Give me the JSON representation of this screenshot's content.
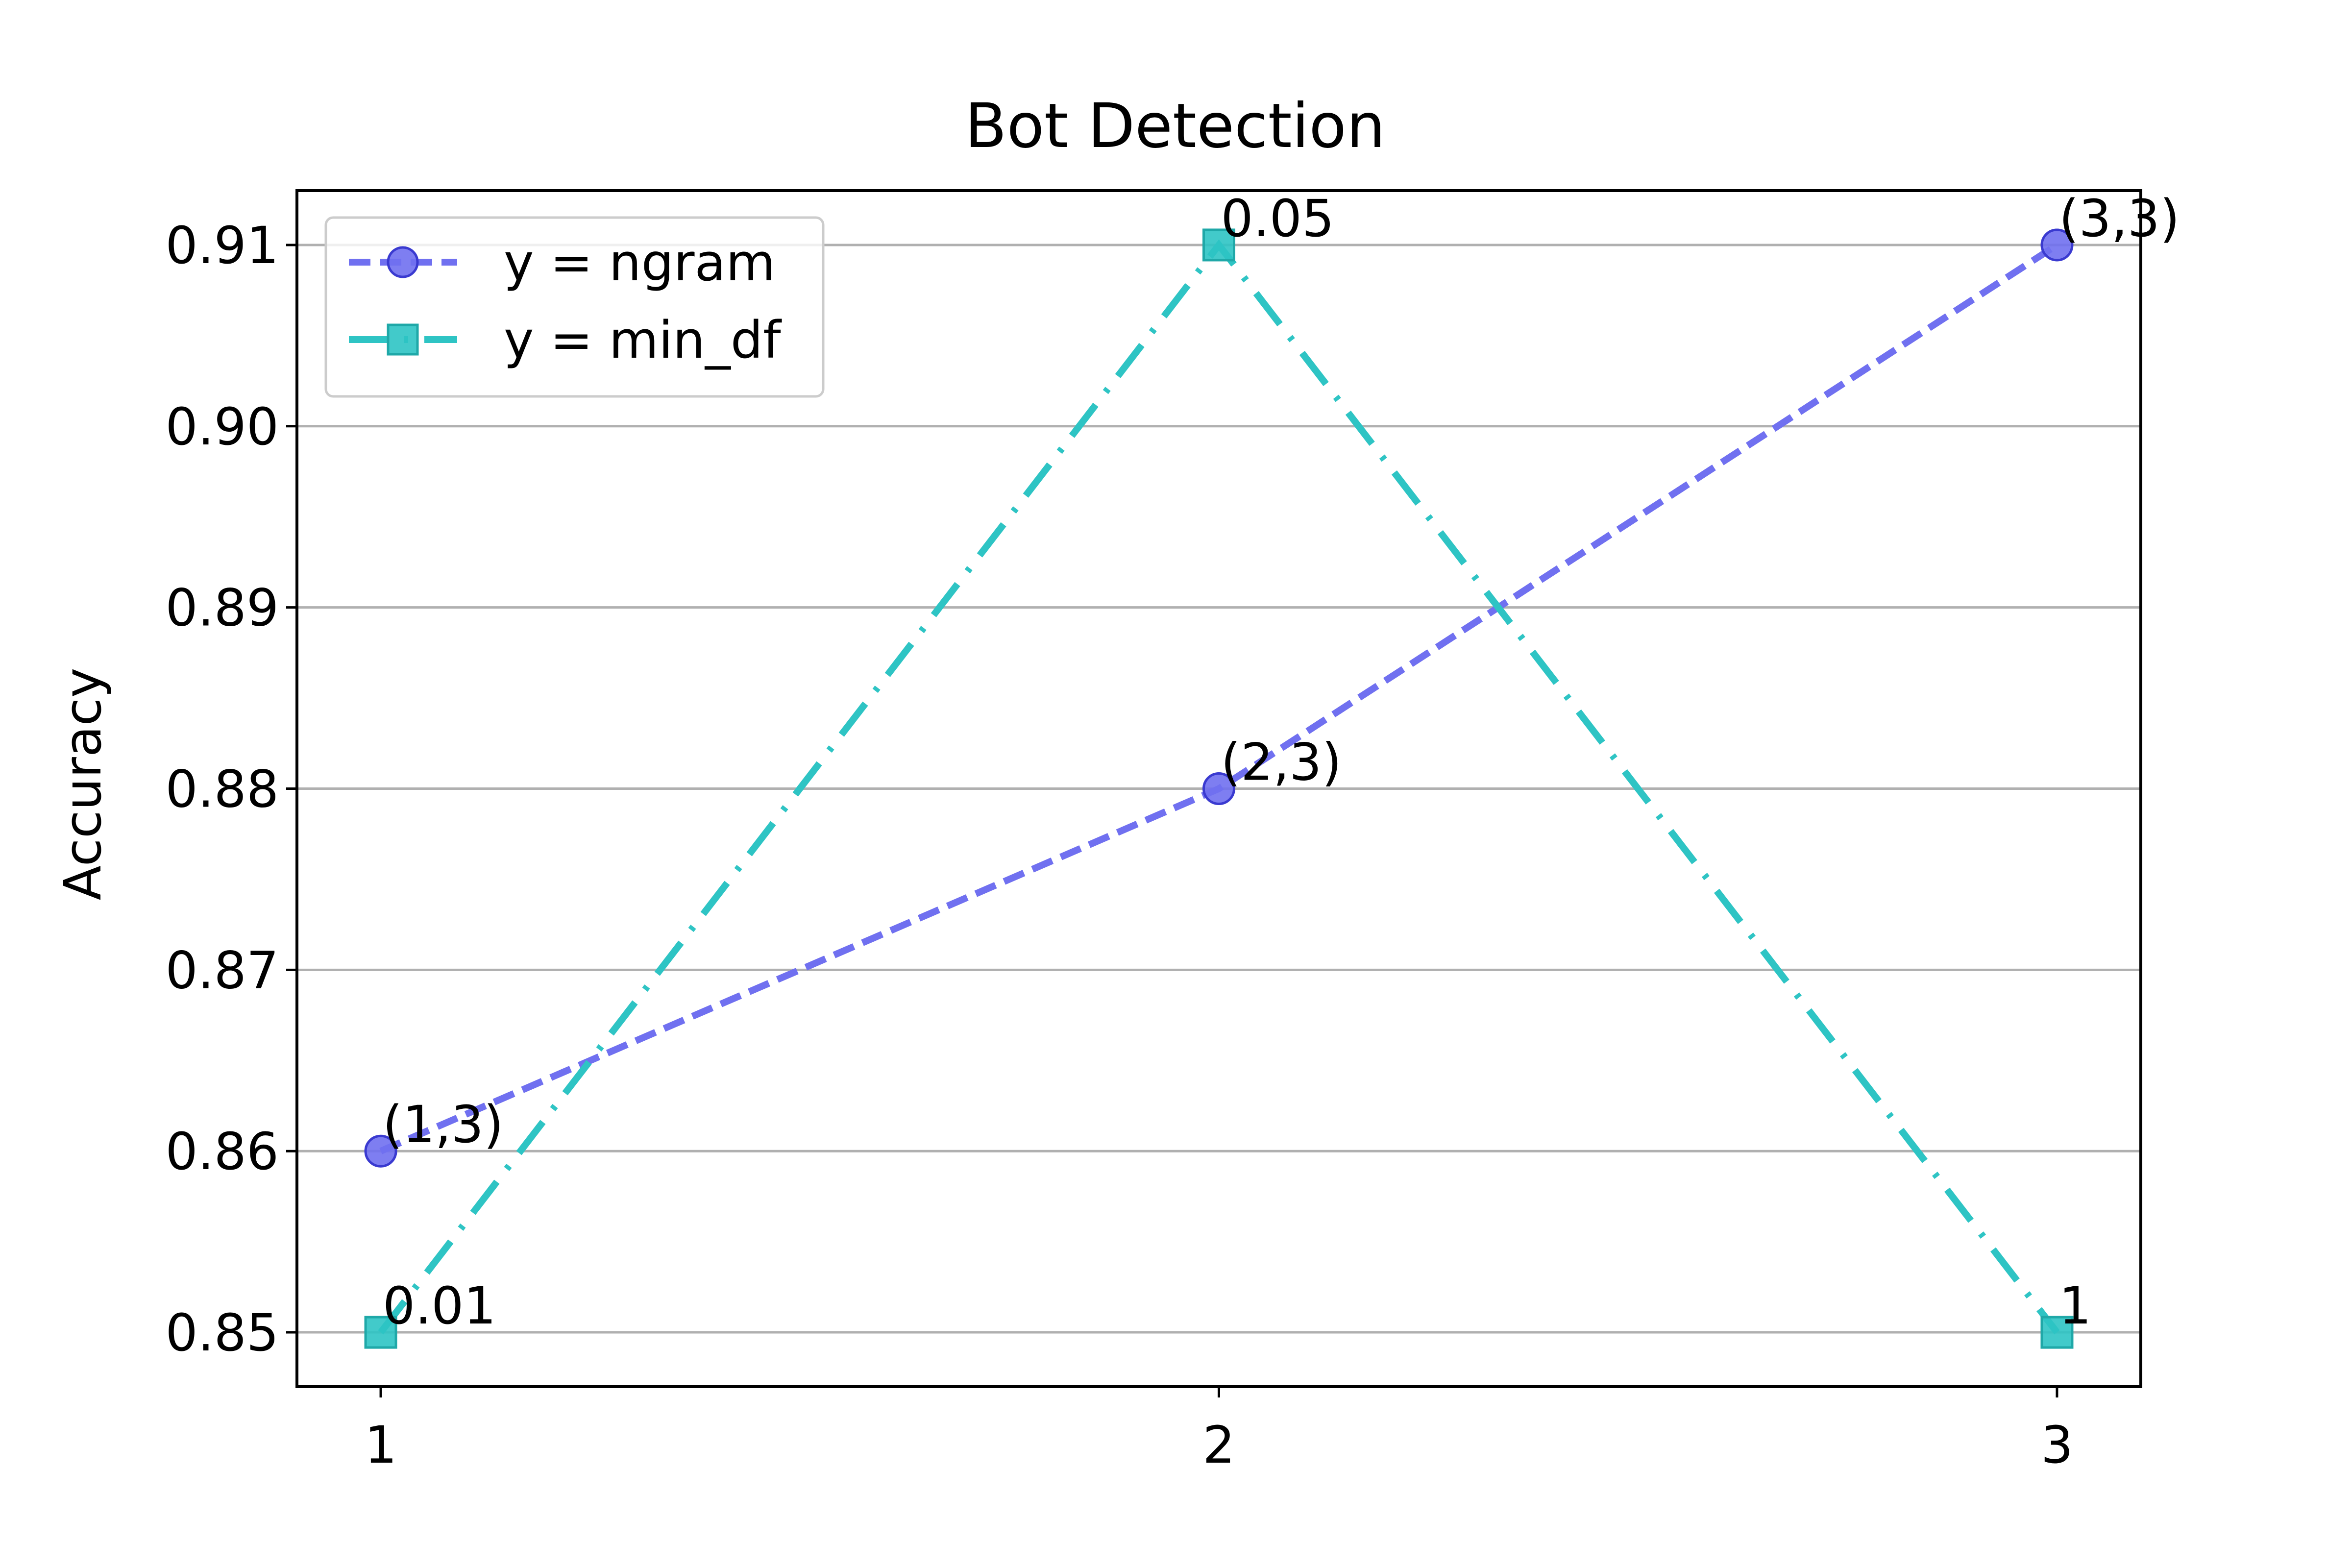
{
  "chart_data": {
    "type": "line",
    "title": "Bot Detection",
    "xlabel": "",
    "ylabel": "Accuracy",
    "x": [
      1,
      2,
      3
    ],
    "x_ticks": [
      "1",
      "2",
      "3"
    ],
    "xlim": [
      0.9,
      3.1
    ],
    "ylim": [
      0.847,
      0.913
    ],
    "y_ticks": [
      "0.85",
      "0.86",
      "0.87",
      "0.88",
      "0.89",
      "0.90",
      "0.91"
    ],
    "y_tick_values": [
      0.85,
      0.86,
      0.87,
      0.88,
      0.89,
      0.9,
      0.91
    ],
    "grid": "horizontal",
    "legend_position": "top-left",
    "series": [
      {
        "name": "y = ngram",
        "values": [
          0.86,
          0.88,
          0.91
        ],
        "point_labels": [
          "(1,3)",
          "(2,3)",
          "(3,3)"
        ],
        "color": "#7070f0",
        "marker": "circle",
        "line_style": "dashed"
      },
      {
        "name": "y = min_df",
        "values": [
          0.85,
          0.91,
          0.85
        ],
        "point_labels": [
          "0.01",
          "0.05",
          "1"
        ],
        "color": "#2ec4c4",
        "marker": "square",
        "line_style": "dash-dot"
      }
    ]
  }
}
